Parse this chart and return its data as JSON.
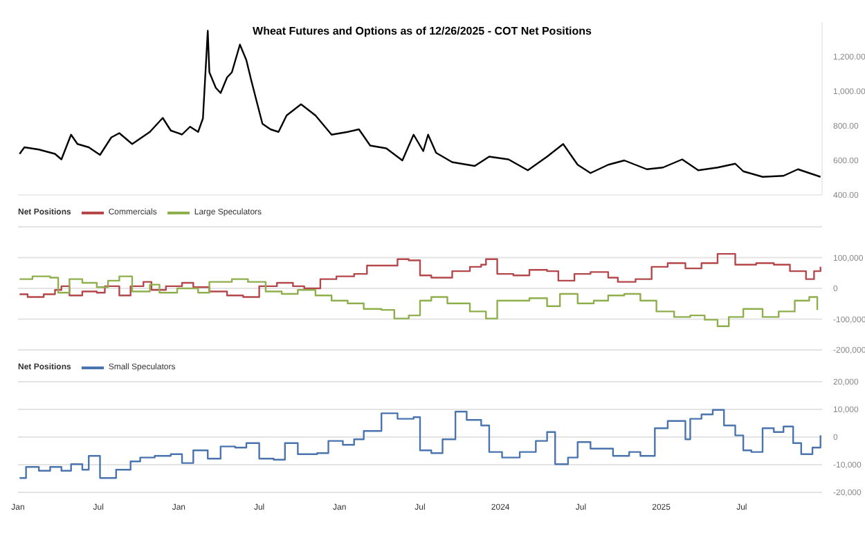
{
  "chart_data": [
    {
      "type": "line",
      "title": "Wheat Futures and Options as of 12/26/2025 - COT Net Positions",
      "xlim": [
        2021,
        2026
      ],
      "ylim": [
        400,
        1400
      ],
      "yticks": [
        {
          "value": 400,
          "label": "400.00"
        },
        {
          "value": 600,
          "label": "600.00"
        },
        {
          "value": 800,
          "label": "800.00"
        },
        {
          "value": 1000,
          "label": "1,000.00"
        },
        {
          "value": 1200,
          "label": "1,200.00"
        }
      ],
      "tick_labels": "y",
      "series": [
        {
          "color": "#000000",
          "x": [
            2021.01,
            2021.04,
            2021.13,
            2021.23,
            2021.27,
            2021.33,
            2021.37,
            2021.44,
            2021.51,
            2021.58,
            2021.63,
            2021.71,
            2021.82,
            2021.9,
            2021.95,
            2022.02,
            2022.07,
            2022.12,
            2022.15,
            2022.18,
            2022.19,
            2022.23,
            2022.26,
            2022.3,
            2022.33,
            2022.38,
            2022.42,
            2022.45,
            2022.49,
            2022.52,
            2022.57,
            2022.62,
            2022.67,
            2022.76,
            2022.85,
            2022.95,
            2023.05,
            2023.12,
            2023.19,
            2023.29,
            2023.39,
            2023.46,
            2023.52,
            2023.55,
            2023.6,
            2023.7,
            2023.84,
            2023.93,
            2024.05,
            2024.17,
            2024.29,
            2024.39,
            2024.48,
            2024.56,
            2024.67,
            2024.77,
            2024.91,
            2025.01,
            2025.13,
            2025.23,
            2025.35,
            2025.46,
            2025.51,
            2025.63,
            2025.76,
            2025.85,
            2025.92,
            2025.99
          ],
          "values": [
            638,
            676,
            663,
            638,
            606,
            749,
            695,
            676,
            632,
            733,
            758,
            695,
            765,
            846,
            773,
            750,
            795,
            765,
            843,
            1350,
            1110,
            1020,
            990,
            1080,
            1110,
            1270,
            1180,
            1065,
            920,
            812,
            780,
            765,
            860,
            925,
            860,
            749,
            765,
            780,
            686,
            670,
            600,
            749,
            654,
            749,
            644,
            590,
            568,
            622,
            606,
            543,
            622,
            695,
            575,
            527,
            575,
            600,
            549,
            559,
            606,
            543,
            559,
            581,
            537,
            505,
            511,
            549,
            527,
            505
          ]
        }
      ]
    },
    {
      "type": "step",
      "xlim": [
        2021,
        2026
      ],
      "ylim": [
        -200000,
        200000
      ],
      "yticks": [
        {
          "value": -200000,
          "label": "-200,000"
        },
        {
          "value": -100000,
          "label": "-100,000"
        },
        {
          "value": 0,
          "label": "0"
        },
        {
          "value": 100000,
          "label": "100,000"
        },
        {
          "value": 200000,
          "label": null
        }
      ],
      "tick_labels": "y",
      "grid": "y",
      "legend": "top left",
      "legend_title": "Net Positions",
      "series": [
        {
          "name": "Commercials",
          "color": "#b5474b",
          "x": [
            2021.01,
            2021.06,
            2021.16,
            2021.23,
            2021.27,
            2021.32,
            2021.4,
            2021.49,
            2021.54,
            2021.63,
            2021.7,
            2021.78,
            2021.83,
            2021.92,
            2022.02,
            2022.09,
            2022.19,
            2022.3,
            2022.4,
            2022.5,
            2022.61,
            2022.71,
            2022.78,
            2022.88,
            2022.98,
            2023.09,
            2023.17,
            2023.29,
            2023.36,
            2023.43,
            2023.5,
            2023.57,
            2023.7,
            2023.81,
            2023.88,
            2023.91,
            2023.98,
            2024.08,
            2024.18,
            2024.29,
            2024.36,
            2024.46,
            2024.56,
            2024.67,
            2024.73,
            2024.84,
            2024.94,
            2025.04,
            2025.15,
            2025.25,
            2025.35,
            2025.46,
            2025.59,
            2025.7,
            2025.8,
            2025.9,
            2025.95,
            2025.99
          ],
          "values": [
            -19000,
            -28000,
            -19000,
            -5000,
            7000,
            -23000,
            -10000,
            -14000,
            7000,
            -23000,
            7000,
            21000,
            -5000,
            7000,
            18000,
            4000,
            -10000,
            -23000,
            -28000,
            7000,
            18000,
            7000,
            0,
            30000,
            39000,
            47000,
            74000,
            74000,
            95000,
            91000,
            42000,
            35000,
            56000,
            70000,
            77000,
            95000,
            47000,
            42000,
            60000,
            56000,
            25000,
            47000,
            53000,
            35000,
            21000,
            30000,
            70000,
            82000,
            65000,
            82000,
            112000,
            77000,
            82000,
            77000,
            56000,
            30000,
            56000,
            70000
          ]
        },
        {
          "name": "Large Speculators",
          "color": "#8fae4c",
          "x": [
            2021.01,
            2021.09,
            2021.2,
            2021.25,
            2021.32,
            2021.4,
            2021.49,
            2021.56,
            2021.63,
            2021.71,
            2021.82,
            2021.88,
            2021.99,
            2022.12,
            2022.19,
            2022.33,
            2022.43,
            2022.54,
            2022.64,
            2022.74,
            2022.85,
            2022.95,
            2023.05,
            2023.15,
            2023.26,
            2023.34,
            2023.43,
            2023.5,
            2023.57,
            2023.67,
            2023.81,
            2023.91,
            2023.98,
            2024.08,
            2024.18,
            2024.29,
            2024.37,
            2024.48,
            2024.58,
            2024.67,
            2024.77,
            2024.87,
            2024.97,
            2025.08,
            2025.18,
            2025.27,
            2025.35,
            2025.42,
            2025.51,
            2025.63,
            2025.73,
            2025.83,
            2025.92,
            2025.97
          ],
          "values": [
            30000,
            39000,
            35000,
            -14000,
            30000,
            18000,
            4000,
            25000,
            39000,
            -10000,
            12000,
            -14000,
            0,
            -14000,
            21000,
            30000,
            21000,
            -10000,
            -18000,
            -5000,
            -23000,
            -40000,
            -49000,
            -67000,
            -70000,
            -98000,
            -88000,
            -40000,
            -28000,
            -49000,
            -75000,
            -98000,
            -40000,
            -40000,
            -32000,
            -58000,
            -18000,
            -49000,
            -40000,
            -23000,
            -18000,
            -40000,
            -75000,
            -93000,
            -88000,
            -102000,
            -123000,
            -93000,
            -67000,
            -93000,
            -75000,
            -40000,
            -28000,
            -70000
          ]
        }
      ]
    },
    {
      "type": "step",
      "xlim": [
        2021,
        2026
      ],
      "xticks": [
        {
          "value": 2021,
          "label": "Jan"
        },
        {
          "value": 2021.5,
          "label": "Jul"
        },
        {
          "value": 2022,
          "label": "Jan"
        },
        {
          "value": 2022.5,
          "label": "Jul"
        },
        {
          "value": 2023,
          "label": "Jan"
        },
        {
          "value": 2023.5,
          "label": "Jul"
        },
        {
          "value": 2024,
          "label": "2024"
        },
        {
          "value": 2024.5,
          "label": "Jul"
        },
        {
          "value": 2025,
          "label": "2025"
        },
        {
          "value": 2025.5,
          "label": "Jul"
        }
      ],
      "ylim": [
        -20000,
        20000
      ],
      "yticks": [
        {
          "value": -20000,
          "label": "-20,000"
        },
        {
          "value": -10000,
          "label": "-10,000"
        },
        {
          "value": 0,
          "label": "0"
        },
        {
          "value": 10000,
          "label": "10,000"
        },
        {
          "value": 20000,
          "label": "20,000"
        }
      ],
      "grid": "y",
      "legend": "top left",
      "legend_title": "Net Positions",
      "series": [
        {
          "name": "Small Speculators",
          "color": "#4a74b0",
          "x": [
            2021.01,
            2021.05,
            2021.13,
            2021.2,
            2021.27,
            2021.33,
            2021.4,
            2021.44,
            2021.51,
            2021.61,
            2021.7,
            2021.76,
            2021.85,
            2021.95,
            2022.02,
            2022.09,
            2022.18,
            2022.26,
            2022.35,
            2022.42,
            2022.5,
            2022.59,
            2022.66,
            2022.74,
            2022.86,
            2022.93,
            2023.02,
            2023.09,
            2023.15,
            2023.26,
            2023.36,
            2023.46,
            2023.5,
            2023.57,
            2023.64,
            2023.72,
            2023.79,
            2023.88,
            2023.93,
            2024.01,
            2024.12,
            2024.22,
            2024.29,
            2024.34,
            2024.42,
            2024.48,
            2024.56,
            2024.67,
            2024.7,
            2024.8,
            2024.87,
            2024.96,
            2025.04,
            2025.15,
            2025.18,
            2025.25,
            2025.32,
            2025.39,
            2025.46,
            2025.51,
            2025.56,
            2025.63,
            2025.7,
            2025.76,
            2025.82,
            2025.87,
            2025.94,
            2025.99
          ],
          "values": [
            -14800,
            -10800,
            -12200,
            -10800,
            -12200,
            -9800,
            -11800,
            -6800,
            -14800,
            -11800,
            -8800,
            -7400,
            -6800,
            -6200,
            -9400,
            -4800,
            -7800,
            -3400,
            -3800,
            -2200,
            -7800,
            -8200,
            -2200,
            -6200,
            -5800,
            -1400,
            -2800,
            -800,
            2200,
            8600,
            6600,
            7200,
            -4800,
            -5800,
            -800,
            9200,
            6200,
            4200,
            -5400,
            -7400,
            -5400,
            -1400,
            1800,
            -9800,
            -7400,
            -1800,
            -4200,
            -4200,
            -6800,
            -5400,
            -6800,
            3200,
            5800,
            -800,
            6600,
            8200,
            9800,
            4200,
            600,
            -4800,
            -5400,
            3200,
            1800,
            3800,
            -2200,
            -6200,
            -3800,
            600
          ]
        }
      ]
    }
  ]
}
